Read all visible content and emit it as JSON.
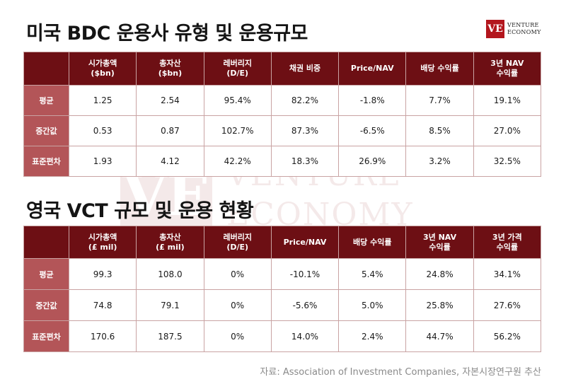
{
  "title1": "미국 BDC 운용사 유형 및 운용규모",
  "title2": "영국 VCT 규모 및 운용 현황",
  "logo": {
    "mark": "VE",
    "line1": "VENTURE",
    "line2": "ECONOMY"
  },
  "watermark": {
    "mark": "VE",
    "line1": "VENTURE",
    "line2": "ECONOMY"
  },
  "table1": {
    "headers": [
      [
        "시가총액",
        "($bn)"
      ],
      [
        "총자산",
        "($bn)"
      ],
      [
        "레버리지",
        "(D/E)"
      ],
      [
        "채권 비중",
        ""
      ],
      [
        "Price/NAV",
        ""
      ],
      [
        "배당 수익률",
        ""
      ],
      [
        "3년 NAV",
        "수익률"
      ]
    ],
    "rows": [
      {
        "label": "평균",
        "cells": [
          "1.25",
          "2.54",
          "95.4%",
          "82.2%",
          "-1.8%",
          "7.7%",
          "19.1%"
        ]
      },
      {
        "label": "중간값",
        "cells": [
          "0.53",
          "0.87",
          "102.7%",
          "87.3%",
          "-6.5%",
          "8.5%",
          "27.0%"
        ]
      },
      {
        "label": "표준편차",
        "cells": [
          "1.93",
          "4.12",
          "42.2%",
          "18.3%",
          "26.9%",
          "3.2%",
          "32.5%"
        ]
      }
    ]
  },
  "table2": {
    "headers": [
      [
        "시가총액",
        "(£ mil)"
      ],
      [
        "총자산",
        "(£ mil)"
      ],
      [
        "레버리지",
        "(D/E)"
      ],
      [
        "Price/NAV",
        ""
      ],
      [
        "배당 수익률",
        ""
      ],
      [
        "3년 NAV",
        "수익률"
      ],
      [
        "3년 가격",
        "수익률"
      ]
    ],
    "rows": [
      {
        "label": "평균",
        "cells": [
          "99.3",
          "108.0",
          "0%",
          "-10.1%",
          "5.4%",
          "24.8%",
          "34.1%"
        ]
      },
      {
        "label": "중간값",
        "cells": [
          "74.8",
          "79.1",
          "0%",
          "-5.6%",
          "5.0%",
          "25.8%",
          "27.6%"
        ]
      },
      {
        "label": "표준편차",
        "cells": [
          "170.6",
          "187.5",
          "0%",
          "14.0%",
          "2.4%",
          "44.7%",
          "56.2%"
        ]
      }
    ]
  },
  "source": "자료: Association of Investment Companies, 자본시장연구원 추산"
}
